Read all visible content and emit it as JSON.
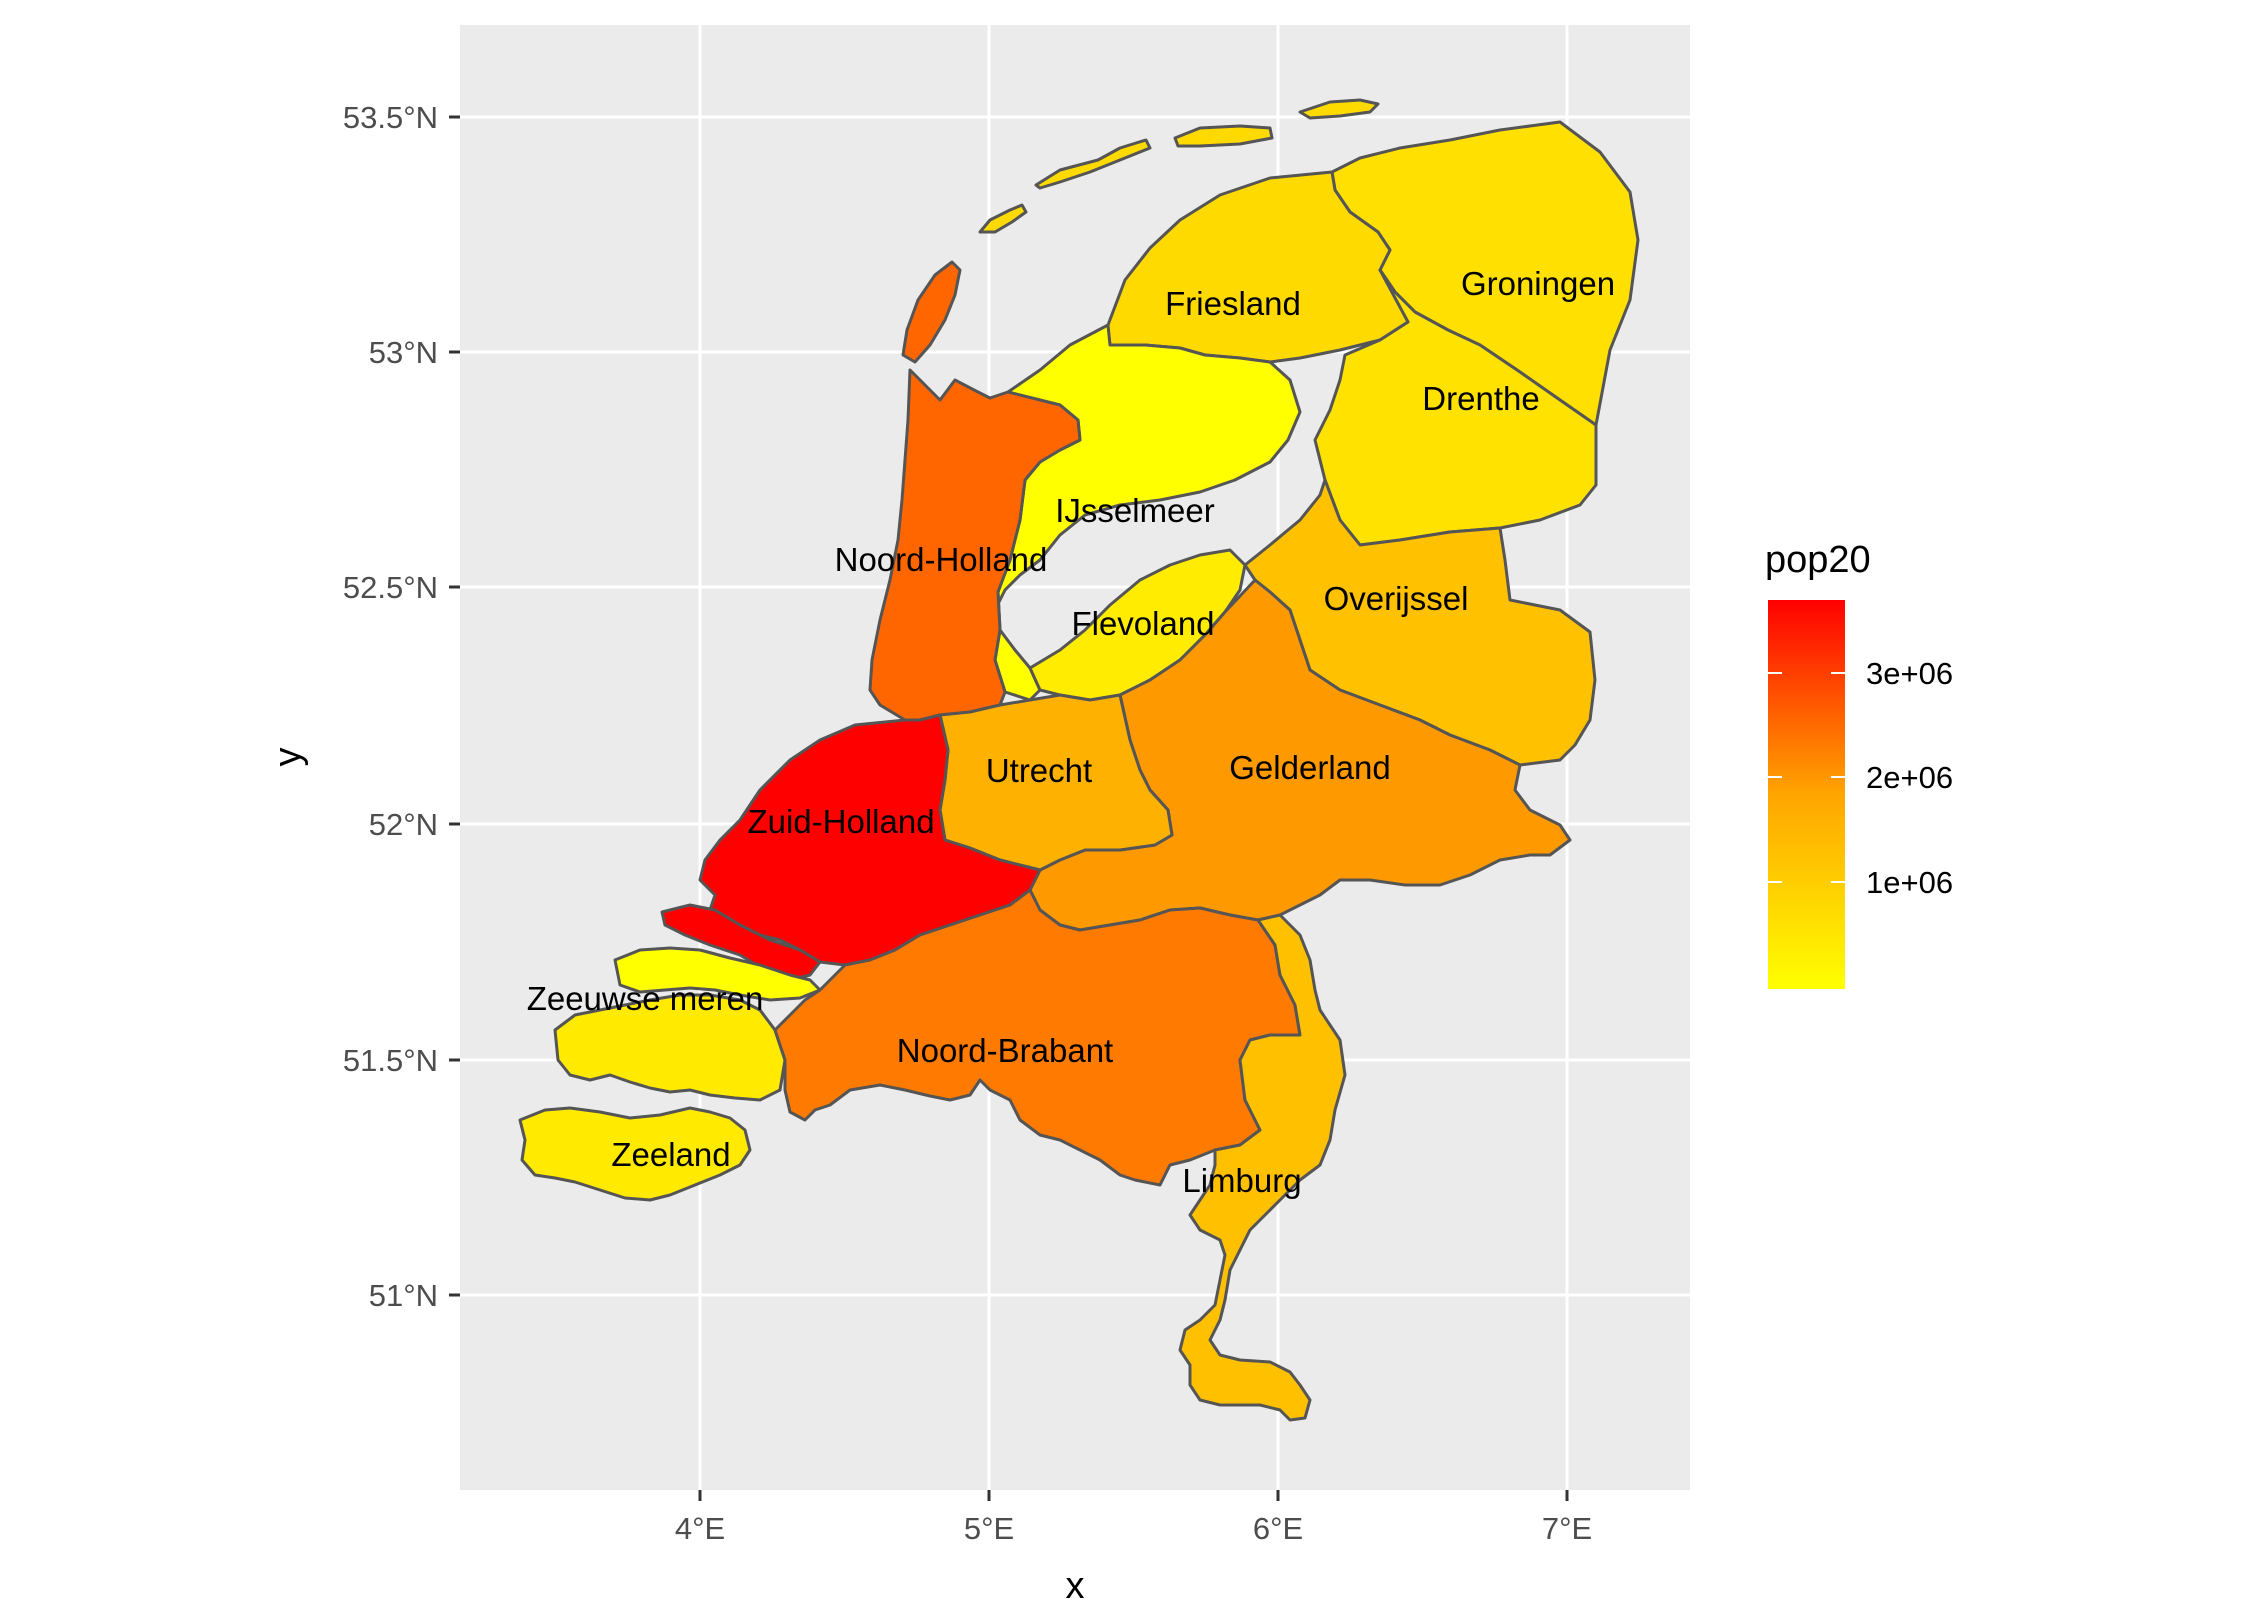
{
  "chart_data": {
    "type": "choropleth",
    "xlabel": "x",
    "ylabel": "y",
    "x_ticks": [
      "4°E",
      "5°E",
      "6°E",
      "7°E"
    ],
    "y_ticks": [
      "51°N",
      "51.5°N",
      "52°N",
      "52.5°N",
      "53°N",
      "53.5°N"
    ],
    "grid": true,
    "legend": {
      "title": "pop20",
      "placement": "right",
      "ticks": [
        "1e+06",
        "2e+06",
        "3e+06"
      ],
      "low_color": "#FFFF00",
      "high_color": "#FF0000"
    },
    "regions": [
      {
        "label": "Groningen",
        "fill": "#FFE000"
      },
      {
        "label": "Friesland",
        "fill": "#FFDA00"
      },
      {
        "label": "Drenthe",
        "fill": "#FFE200"
      },
      {
        "label": "IJsselmeer",
        "fill": "#FFFF00"
      },
      {
        "label": "Noord-Holland",
        "fill": "#FF6600"
      },
      {
        "label": "Flevoland",
        "fill": "#FFEC00"
      },
      {
        "label": "Overijssel",
        "fill": "#FFC100"
      },
      {
        "label": "Utrecht",
        "fill": "#FFB100"
      },
      {
        "label": "Gelderland",
        "fill": "#FF9900"
      },
      {
        "label": "Zuid-Holland",
        "fill": "#FF0000"
      },
      {
        "label": "Zeeuwse meren",
        "fill": "#FFFF00"
      },
      {
        "label": "Noord-Brabant",
        "fill": "#FF7A00"
      },
      {
        "label": "Zeeland",
        "fill": "#FFEA00"
      },
      {
        "label": "Limburg",
        "fill": "#FFC000"
      }
    ]
  }
}
